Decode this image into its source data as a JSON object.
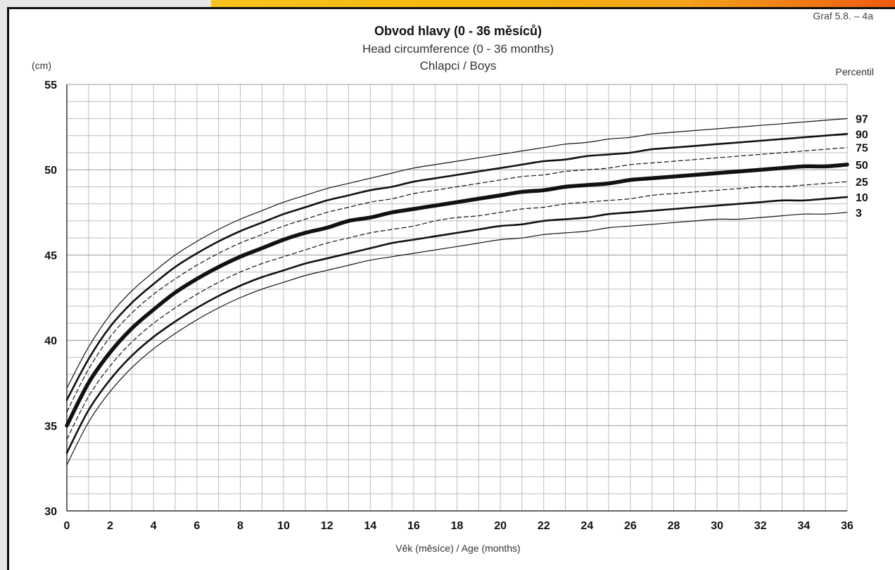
{
  "header": {
    "graf_label": "Graf 5.8. – 4a"
  },
  "chart_data": {
    "type": "line",
    "title": "Obvod hlavy (0 - 36 měsíců)",
    "subtitle": "Head circumference (0 - 36 months)",
    "subtitle2": "Chlapci / Boys",
    "ylabel": "(cm)",
    "xlabel": "Věk (měsíce) / Age (months)",
    "percentile_label": "Percentil",
    "xlim": [
      0,
      36
    ],
    "ylim": [
      30,
      55
    ],
    "x_ticks": [
      0,
      2,
      4,
      6,
      8,
      10,
      12,
      14,
      16,
      18,
      20,
      22,
      24,
      26,
      28,
      30,
      32,
      34,
      36
    ],
    "y_ticks": [
      30,
      35,
      40,
      45,
      50,
      55
    ],
    "grid": true,
    "x": [
      0,
      1,
      2,
      3,
      4,
      5,
      6,
      7,
      8,
      9,
      10,
      11,
      12,
      13,
      14,
      15,
      16,
      17,
      18,
      19,
      20,
      21,
      22,
      23,
      24,
      25,
      26,
      27,
      28,
      29,
      30,
      31,
      32,
      33,
      34,
      35,
      36
    ],
    "series": [
      {
        "name": "97",
        "style": "thin",
        "values": [
          37.2,
          39.6,
          41.5,
          42.9,
          44.0,
          45.0,
          45.8,
          46.5,
          47.1,
          47.6,
          48.1,
          48.5,
          48.9,
          49.2,
          49.5,
          49.8,
          50.1,
          50.3,
          50.5,
          50.7,
          50.9,
          51.1,
          51.3,
          51.5,
          51.6,
          51.8,
          51.9,
          52.1,
          52.2,
          52.3,
          52.4,
          52.5,
          52.6,
          52.7,
          52.8,
          52.9,
          53.0
        ]
      },
      {
        "name": "90",
        "style": "medium",
        "values": [
          36.5,
          38.9,
          40.8,
          42.2,
          43.3,
          44.3,
          45.1,
          45.8,
          46.4,
          46.9,
          47.4,
          47.8,
          48.2,
          48.5,
          48.8,
          49.0,
          49.3,
          49.5,
          49.7,
          49.9,
          50.1,
          50.3,
          50.5,
          50.6,
          50.8,
          50.9,
          51.0,
          51.2,
          51.3,
          51.4,
          51.5,
          51.6,
          51.7,
          51.8,
          51.9,
          52.0,
          52.1
        ]
      },
      {
        "name": "75",
        "style": "dashed",
        "values": [
          35.8,
          38.3,
          40.2,
          41.6,
          42.7,
          43.6,
          44.4,
          45.1,
          45.7,
          46.2,
          46.7,
          47.1,
          47.5,
          47.8,
          48.1,
          48.3,
          48.6,
          48.8,
          49.0,
          49.2,
          49.4,
          49.6,
          49.7,
          49.9,
          50.0,
          50.1,
          50.3,
          50.4,
          50.5,
          50.6,
          50.7,
          50.8,
          50.9,
          51.0,
          51.1,
          51.2,
          51.3
        ]
      },
      {
        "name": "50",
        "style": "thick",
        "values": [
          35.0,
          37.5,
          39.3,
          40.7,
          41.8,
          42.8,
          43.6,
          44.3,
          44.9,
          45.4,
          45.9,
          46.3,
          46.6,
          47.0,
          47.2,
          47.5,
          47.7,
          47.9,
          48.1,
          48.3,
          48.5,
          48.7,
          48.8,
          49.0,
          49.1,
          49.2,
          49.4,
          49.5,
          49.6,
          49.7,
          49.8,
          49.9,
          50.0,
          50.1,
          50.2,
          50.2,
          50.3
        ]
      },
      {
        "name": "25",
        "style": "dashed",
        "values": [
          34.2,
          36.7,
          38.5,
          39.9,
          41.0,
          41.9,
          42.7,
          43.4,
          44.0,
          44.5,
          44.9,
          45.3,
          45.7,
          46.0,
          46.3,
          46.5,
          46.7,
          47.0,
          47.2,
          47.3,
          47.5,
          47.7,
          47.8,
          48.0,
          48.1,
          48.2,
          48.3,
          48.5,
          48.6,
          48.7,
          48.8,
          48.9,
          49.0,
          49.0,
          49.1,
          49.2,
          49.3
        ]
      },
      {
        "name": "10",
        "style": "medium",
        "values": [
          33.4,
          35.9,
          37.7,
          39.1,
          40.2,
          41.1,
          41.9,
          42.6,
          43.2,
          43.7,
          44.1,
          44.5,
          44.8,
          45.1,
          45.4,
          45.7,
          45.9,
          46.1,
          46.3,
          46.5,
          46.7,
          46.8,
          47.0,
          47.1,
          47.2,
          47.4,
          47.5,
          47.6,
          47.7,
          47.8,
          47.9,
          48.0,
          48.1,
          48.2,
          48.2,
          48.3,
          48.4
        ]
      },
      {
        "name": "3",
        "style": "thin",
        "values": [
          32.7,
          35.2,
          37.0,
          38.4,
          39.5,
          40.4,
          41.2,
          41.9,
          42.5,
          43.0,
          43.4,
          43.8,
          44.1,
          44.4,
          44.7,
          44.9,
          45.1,
          45.3,
          45.5,
          45.7,
          45.9,
          46.0,
          46.2,
          46.3,
          46.4,
          46.6,
          46.7,
          46.8,
          46.9,
          47.0,
          47.1,
          47.1,
          47.2,
          47.3,
          47.4,
          47.4,
          47.5
        ]
      }
    ],
    "colors": {
      "line": "#111111",
      "grid": "#bdbdbd",
      "axis": "#333333"
    }
  }
}
